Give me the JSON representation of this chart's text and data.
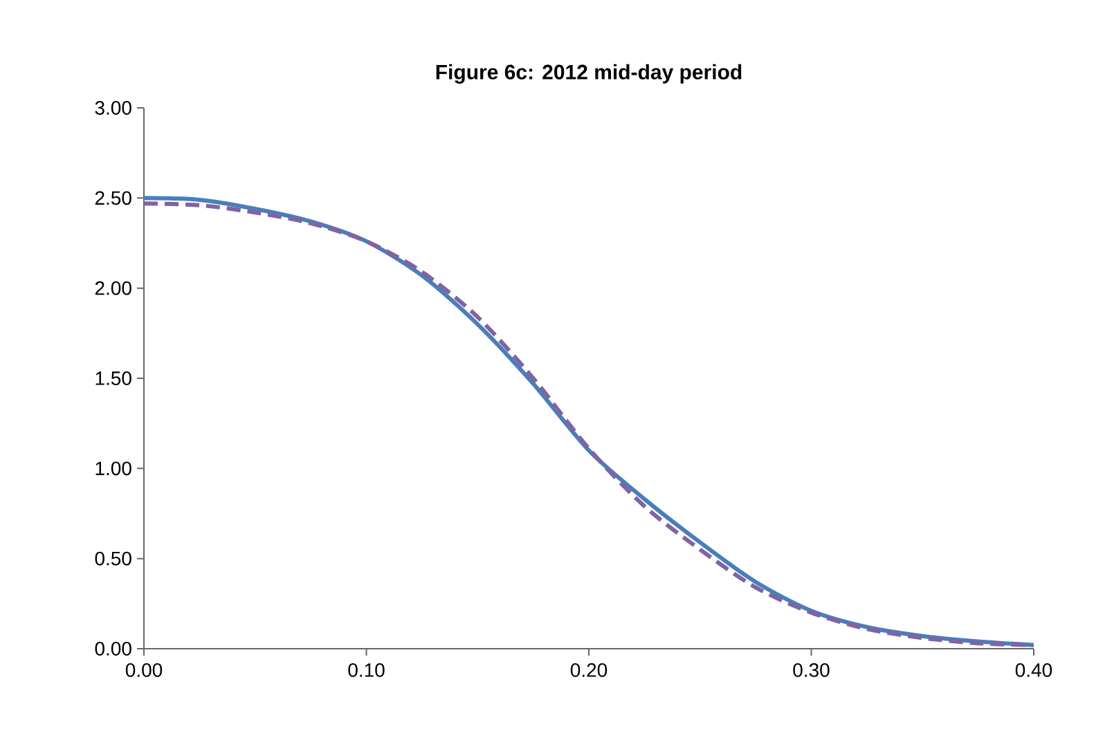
{
  "chart_data": {
    "type": "line",
    "title": "Figure 6c: 2012 mid-day period",
    "x": [
      0,
      0.025,
      0.05,
      0.075,
      0.1,
      0.125,
      0.15,
      0.175,
      0.2,
      0.225,
      0.25,
      0.275,
      0.3,
      0.325,
      0.35,
      0.375,
      0.4
    ],
    "series": [
      {
        "color": "#4a7ebb",
        "line_style": "solid",
        "values": [
          2.5,
          2.49,
          2.44,
          2.37,
          2.26,
          2.07,
          1.8,
          1.47,
          1.1,
          0.83,
          0.59,
          0.37,
          0.21,
          0.12,
          0.07,
          0.04,
          0.02
        ]
      },
      {
        "color": "#8064a2",
        "line_style": "dashed",
        "values": [
          2.47,
          2.46,
          2.42,
          2.36,
          2.26,
          2.09,
          1.84,
          1.5,
          1.11,
          0.79,
          0.55,
          0.34,
          0.2,
          0.11,
          0.06,
          0.03,
          0.02
        ]
      }
    ],
    "xlim": [
      0,
      0.4
    ],
    "xticks": [
      {
        "value": 0,
        "label": "0.00"
      },
      {
        "value": 0.1,
        "label": "0.10"
      },
      {
        "value": 0.2,
        "label": "0.20"
      },
      {
        "value": 0.3,
        "label": "0.30"
      },
      {
        "value": 0.4,
        "label": "0.40"
      }
    ],
    "ylim": [
      0,
      3
    ],
    "yticks": [
      {
        "value": 0,
        "label": "0.00"
      },
      {
        "value": 0.5,
        "label": "0.50"
      },
      {
        "value": 1,
        "label": "1.00"
      },
      {
        "value": 1.5,
        "label": "1.50"
      },
      {
        "value": 2,
        "label": "2.00"
      },
      {
        "value": 2.5,
        "label": "2.50"
      },
      {
        "value": 3,
        "label": "3.00"
      }
    ],
    "grid": false,
    "marker": "none"
  }
}
